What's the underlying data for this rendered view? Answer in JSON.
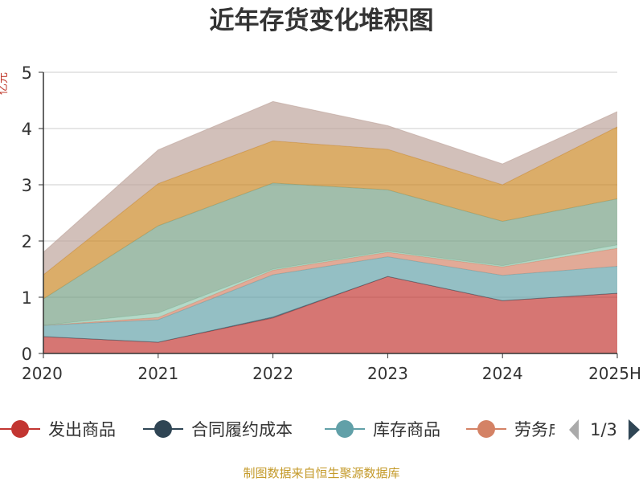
{
  "chart_data": {
    "type": "area",
    "stacked": true,
    "title": "近年存货变化堆积图",
    "ylabel": "亿元",
    "categories": [
      "2020",
      "2021",
      "2022",
      "2023",
      "2024",
      "2025H"
    ],
    "ylim": [
      0,
      5
    ],
    "yticks": [
      "0",
      "1",
      "2",
      "3",
      "4",
      "5"
    ],
    "grid": true,
    "series": [
      {
        "name": "发出商品",
        "color": "#c23531",
        "values": [
          0.3,
          0.2,
          0.63,
          1.37,
          0.94,
          1.07
        ]
      },
      {
        "name": "合同履约成本",
        "color": "#2f4554",
        "values": [
          0.0,
          0.0,
          0.02,
          0.0,
          0.0,
          0.0
        ]
      },
      {
        "name": "库存商品",
        "color": "#61a0a8",
        "values": [
          0.2,
          0.4,
          0.75,
          0.35,
          0.45,
          0.48
        ]
      },
      {
        "name": "劳务成本",
        "color": "#d48265",
        "values": [
          0.0,
          0.04,
          0.08,
          0.08,
          0.15,
          0.32
        ]
      },
      {
        "name": "",
        "color": "#91c7ae",
        "values": [
          0.0,
          0.08,
          0.02,
          0.02,
          0.02,
          0.06
        ]
      },
      {
        "name": "",
        "color": "#749f83",
        "values": [
          0.47,
          1.55,
          1.53,
          1.09,
          0.79,
          0.82
        ]
      },
      {
        "name": "",
        "color": "#ca8622",
        "values": [
          0.43,
          0.75,
          0.75,
          0.72,
          0.65,
          1.28
        ]
      },
      {
        "name": "",
        "color": "#bda29a",
        "values": [
          0.4,
          0.6,
          0.7,
          0.42,
          0.37,
          0.27
        ]
      }
    ],
    "legend_position": "bottom"
  },
  "legend": {
    "visible_items": [
      "发出商品",
      "合同履约成本",
      "库存商品",
      "劳务成本"
    ],
    "pager": "1/3"
  },
  "source_note": "制图数据来自恒生聚源数据库"
}
